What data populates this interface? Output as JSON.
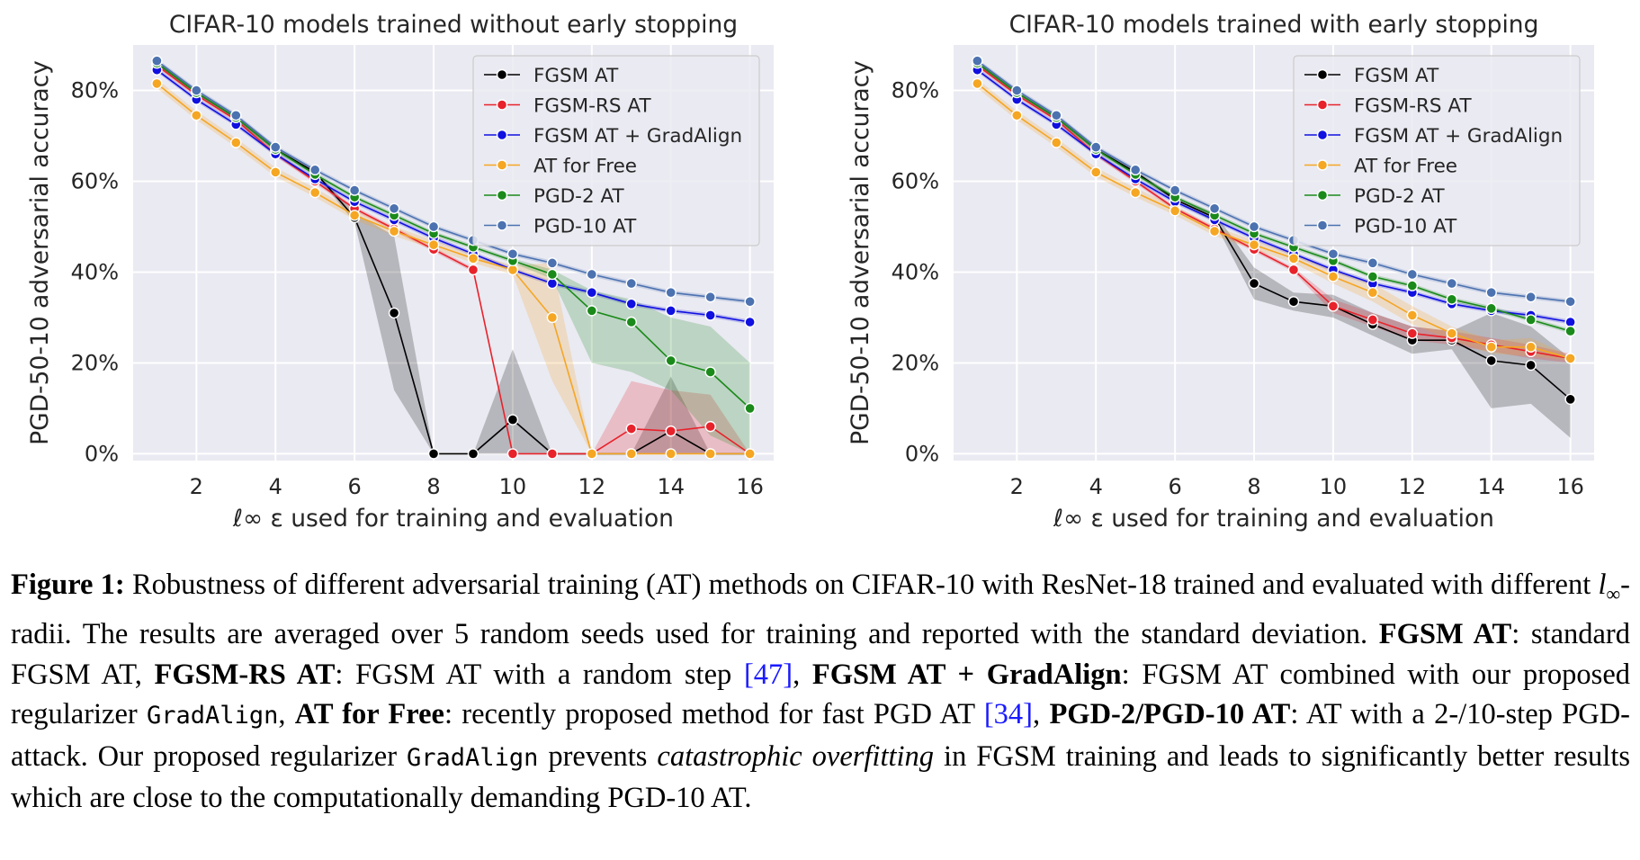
{
  "chart_data": [
    {
      "type": "line",
      "title": "CIFAR-10 models trained without early stopping",
      "xlabel": "ℓ∞ ε used for training and evaluation",
      "ylabel": "PGD-50-10 adversarial accuracy",
      "xlim": [
        0.4,
        16.6
      ],
      "ylim": [
        -1.5,
        90
      ],
      "xticks": [
        2,
        4,
        6,
        8,
        10,
        12,
        14,
        16
      ],
      "yticks": [
        0,
        20,
        40,
        60,
        80
      ],
      "ytick_labels": [
        "0%",
        "20%",
        "40%",
        "60%",
        "80%"
      ],
      "grid": true,
      "legend": "top-right",
      "x": [
        1,
        2,
        3,
        4,
        5,
        6,
        7,
        8,
        9,
        10,
        11,
        12,
        13,
        14,
        15,
        16
      ],
      "series": [
        {
          "name": "FGSM AT",
          "color": "#000000",
          "values": [
            86,
            79.5,
            74,
            67,
            62,
            52,
            31,
            0,
            0,
            7.5,
            0,
            0,
            0,
            5,
            0,
            0
          ],
          "band_low": [
            85.5,
            79,
            73.5,
            66.5,
            61.5,
            51,
            14,
            0,
            0,
            0,
            0,
            0,
            0,
            0,
            0,
            0
          ],
          "band_high": [
            86.5,
            80,
            74.5,
            67.5,
            62.5,
            53,
            48,
            0,
            0,
            23,
            0,
            0,
            0,
            17,
            0,
            0
          ]
        },
        {
          "name": "FGSM-RS AT",
          "color": "#e8222b",
          "values": [
            85.5,
            79,
            73.5,
            66,
            60,
            54,
            49.5,
            45,
            40.5,
            0,
            0,
            0,
            5.5,
            5,
            6,
            0
          ],
          "band_low": [
            85,
            78.5,
            73,
            65.5,
            59.5,
            53.5,
            49,
            44.5,
            40,
            0,
            0,
            0,
            0,
            0,
            0,
            0
          ],
          "band_high": [
            86,
            79.5,
            74,
            66.5,
            60.5,
            54.5,
            50,
            45.5,
            41,
            0,
            0,
            0,
            16,
            14,
            13,
            0
          ]
        },
        {
          "name": "FGSM AT + GradAlign",
          "color": "#1010e0",
          "values": [
            84.5,
            78,
            72.5,
            66,
            60.5,
            55.5,
            51.5,
            47.5,
            44,
            40.5,
            37.5,
            35.5,
            33,
            31.5,
            30.5,
            29
          ],
          "band_low": [
            84,
            77.5,
            72,
            65.5,
            60,
            55,
            51,
            47,
            43.5,
            40,
            37,
            35,
            32.5,
            31,
            30,
            28.5
          ],
          "band_high": [
            85,
            78.5,
            73,
            66.5,
            61,
            56,
            52,
            48,
            44.5,
            41,
            38,
            36,
            33.5,
            32,
            31,
            29.5
          ]
        },
        {
          "name": "AT for Free",
          "color": "#f5a623",
          "values": [
            81.5,
            74.5,
            68.5,
            62,
            57.5,
            52.5,
            49,
            46,
            43,
            40.5,
            30,
            0,
            0,
            0,
            0,
            0
          ],
          "band_low": [
            80.5,
            73.5,
            67.5,
            61,
            56.5,
            51.5,
            48,
            45,
            42,
            39.5,
            16,
            0,
            0,
            0,
            0,
            0
          ],
          "band_high": [
            82.5,
            75.5,
            69.5,
            63,
            58.5,
            53.5,
            50,
            47,
            44,
            41.5,
            42,
            0,
            0,
            0,
            0,
            0
          ]
        },
        {
          "name": "PGD-2 AT",
          "color": "#1a8a1a",
          "values": [
            86,
            79.5,
            74,
            67,
            61.5,
            56.5,
            52.5,
            48.5,
            45.5,
            42.5,
            39.5,
            31.5,
            29,
            20.5,
            18,
            10
          ],
          "band_low": [
            85.5,
            79,
            73.5,
            66.5,
            61,
            56,
            52,
            48,
            45,
            42,
            38.5,
            20,
            18,
            14,
            4,
            0
          ],
          "band_high": [
            86.5,
            80,
            74.5,
            67.5,
            62,
            57,
            53,
            49,
            46,
            43,
            40.5,
            36,
            34,
            30,
            28,
            20
          ]
        },
        {
          "name": "PGD-10 AT",
          "color": "#4c72b0",
          "values": [
            86.5,
            80,
            74.5,
            67.5,
            62.5,
            58,
            54,
            50,
            47,
            44,
            42,
            39.5,
            37.5,
            35.5,
            34.5,
            33.5
          ],
          "band_low": [
            86,
            79.5,
            74,
            67,
            62,
            57.5,
            53.5,
            49.5,
            46.5,
            43.5,
            41.5,
            39,
            37,
            35,
            34,
            33
          ],
          "band_high": [
            87,
            80.5,
            75,
            68,
            63,
            58.5,
            54.5,
            50.5,
            47.5,
            44.5,
            42.5,
            40,
            38,
            36,
            35,
            34
          ]
        }
      ]
    },
    {
      "type": "line",
      "title": "CIFAR-10 models trained with early stopping",
      "xlabel": "ℓ∞ ε used for training and evaluation",
      "ylabel": "PGD-50-10 adversarial accuracy",
      "xlim": [
        0.4,
        16.6
      ],
      "ylim": [
        -1.5,
        90
      ],
      "xticks": [
        2,
        4,
        6,
        8,
        10,
        12,
        14,
        16
      ],
      "yticks": [
        0,
        20,
        40,
        60,
        80
      ],
      "ytick_labels": [
        "0%",
        "20%",
        "40%",
        "60%",
        "80%"
      ],
      "grid": true,
      "legend": "top-right",
      "x": [
        1,
        2,
        3,
        4,
        5,
        6,
        7,
        8,
        9,
        10,
        11,
        12,
        13,
        14,
        15,
        16
      ],
      "series": [
        {
          "name": "FGSM AT",
          "color": "#000000",
          "values": [
            86,
            79.5,
            74,
            67,
            62,
            56,
            52,
            37.5,
            33.5,
            32.5,
            28.5,
            25,
            25,
            20.5,
            19.5,
            12
          ],
          "band_low": [
            85.5,
            79,
            73.5,
            66.5,
            61.5,
            55.5,
            51,
            34,
            31.5,
            30,
            26,
            22,
            23,
            10,
            11,
            3.5
          ],
          "band_high": [
            86.5,
            80,
            74.5,
            67.5,
            62.5,
            56.5,
            53,
            41,
            35.5,
            35,
            31,
            28,
            27,
            31,
            28,
            21
          ]
        },
        {
          "name": "FGSM-RS AT",
          "color": "#e8222b",
          "values": [
            85.5,
            79,
            73.5,
            66,
            60,
            54,
            49.5,
            45,
            40.5,
            32.5,
            29.5,
            26.5,
            25.5,
            24,
            22.5,
            21
          ],
          "band_low": [
            85,
            78.5,
            73,
            65.5,
            59.5,
            53.5,
            49,
            44.5,
            40,
            31,
            28,
            25,
            24,
            22.5,
            21,
            20
          ],
          "band_high": [
            86,
            79.5,
            74,
            66.5,
            60.5,
            54.5,
            50,
            45.5,
            41,
            34,
            31,
            28,
            27,
            25.5,
            24,
            22
          ]
        },
        {
          "name": "FGSM AT + GradAlign",
          "color": "#1010e0",
          "values": [
            84.5,
            78,
            72.5,
            66,
            60.5,
            55.5,
            51.5,
            47.5,
            44,
            40.5,
            37.5,
            35.5,
            33,
            31.5,
            30.5,
            29
          ],
          "band_low": [
            84,
            77.5,
            72,
            65.5,
            60,
            55,
            51,
            47,
            43.5,
            40,
            37,
            35,
            32.5,
            31,
            30,
            28.5
          ],
          "band_high": [
            85,
            78.5,
            73,
            66.5,
            61,
            56,
            52,
            48,
            44.5,
            41,
            38,
            36,
            33.5,
            32,
            31,
            29.5
          ]
        },
        {
          "name": "AT for Free",
          "color": "#f5a623",
          "values": [
            81.5,
            74.5,
            68.5,
            62,
            57.5,
            53.5,
            49,
            46,
            43,
            39,
            35.5,
            30.5,
            26.5,
            23.5,
            23.5,
            21
          ],
          "band_low": [
            80.5,
            73.5,
            67.5,
            61,
            56.5,
            52.5,
            48,
            45,
            42,
            37.5,
            33.5,
            28.5,
            25,
            22,
            21.5,
            20.5
          ],
          "band_high": [
            82.5,
            75.5,
            69.5,
            63,
            58.5,
            54.5,
            50,
            47,
            44,
            40.5,
            37.5,
            32.5,
            28,
            25,
            25.5,
            21.5
          ]
        },
        {
          "name": "PGD-2 AT",
          "color": "#1a8a1a",
          "values": [
            86,
            79.5,
            74,
            67,
            61.5,
            56.5,
            52.5,
            48.5,
            45.5,
            42.5,
            39,
            37,
            34,
            32,
            29.5,
            27
          ],
          "band_low": [
            85.5,
            79,
            73.5,
            66.5,
            61,
            56,
            52,
            48,
            45,
            42,
            38.5,
            36.5,
            33.5,
            31.5,
            29,
            26.5
          ],
          "band_high": [
            86.5,
            80,
            74.5,
            67.5,
            62,
            57,
            53,
            49,
            46,
            43,
            39.5,
            37.5,
            34.5,
            32.5,
            30,
            27.5
          ]
        },
        {
          "name": "PGD-10 AT",
          "color": "#4c72b0",
          "values": [
            86.5,
            80,
            74.5,
            67.5,
            62.5,
            58,
            54,
            50,
            47,
            44,
            42,
            39.5,
            37.5,
            35.5,
            34.5,
            33.5
          ],
          "band_low": [
            86,
            79.5,
            74,
            67,
            62,
            57.5,
            53.5,
            49.5,
            46.5,
            43.5,
            41.5,
            39,
            37,
            35,
            34,
            33
          ],
          "band_high": [
            87,
            80.5,
            75,
            68,
            63,
            58.5,
            54.5,
            50.5,
            47.5,
            44.5,
            42.5,
            40,
            38,
            36,
            35,
            34
          ]
        }
      ]
    }
  ],
  "caption": {
    "label": "Figure 1:",
    "t1": " Robustness of different adversarial training (AT) methods on CIFAR-10 with ResNet-18 trained and evaluated with different ",
    "math_l": "l",
    "math_sub": "∞",
    "t2": "-radii. The results are averaged over 5 random seeds used for training and reported with the standard deviation. ",
    "b1": "FGSM AT",
    "t3": ": standard FGSM AT, ",
    "b2": "FGSM-RS AT",
    "t4": ": FGSM AT with a random step ",
    "ref1": "[47]",
    "t5": ", ",
    "b3": "FGSM AT + GradAlign",
    "t6": ": FGSM AT combined with our proposed regularizer ",
    "code1": "GradAlign",
    "t7": ", ",
    "b4": "AT for Free",
    "t8": ": recently proposed method for fast PGD AT ",
    "ref2": "[34]",
    "t9": ", ",
    "b5": "PGD-2/PGD-10 AT",
    "t10": ": AT with a 2-/10-step PGD-attack. Our proposed regularizer ",
    "code2": "GradAlign",
    "t11": " prevents ",
    "it1": "catastrophic overfitting",
    "t12": " in FGSM training and leads to significantly better results which are close to the computationally demanding PGD-10 AT."
  }
}
